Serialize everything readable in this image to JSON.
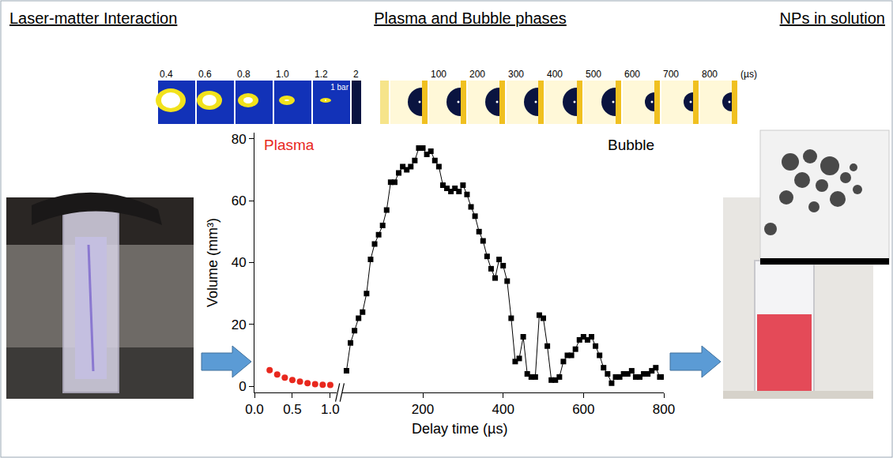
{
  "chart_data": {
    "type": "scatter",
    "x_label": "Delay time (µs)",
    "y_label": "Volume (mm³)",
    "xlim": [
      0,
      1.08
    ],
    "xticks": [
      {
        "value": 0,
        "label": "0.0"
      },
      0.5,
      {
        "value": 1,
        "label": "1.0"
      }
    ],
    "x2lim": [
      0,
      800
    ],
    "x2ticks": [
      200,
      400,
      600,
      800
    ],
    "ylim": [
      -2,
      82
    ],
    "yticks": [
      0,
      20,
      40,
      60,
      80
    ],
    "grid": false,
    "series": [
      {
        "name": "Plasma",
        "color": "#e8281e",
        "marker": "circle",
        "line_style": "none",
        "x": [
          0.2,
          0.3,
          0.4,
          0.5,
          0.6,
          0.7,
          0.8,
          0.9,
          1.0
        ],
        "values": [
          5.2,
          3.8,
          2.8,
          2.0,
          1.5,
          1.0,
          0.7,
          0.5,
          0.4
        ]
      },
      {
        "name": "Bubble",
        "color": "#000000",
        "marker": "square",
        "line_style": "solid",
        "axis": "x2",
        "x": [
          10,
          20,
          30,
          40,
          50,
          60,
          70,
          80,
          90,
          100,
          110,
          120,
          130,
          140,
          150,
          160,
          170,
          180,
          190,
          200,
          210,
          220,
          230,
          240,
          250,
          260,
          270,
          280,
          290,
          300,
          310,
          320,
          330,
          340,
          350,
          360,
          370,
          380,
          390,
          400,
          410,
          420,
          430,
          440,
          450,
          460,
          470,
          480,
          490,
          500,
          510,
          520,
          530,
          540,
          550,
          560,
          570,
          580,
          590,
          600,
          610,
          620,
          630,
          640,
          650,
          660,
          670,
          680,
          690,
          700,
          710,
          720,
          730,
          740,
          750,
          760,
          770,
          780,
          790,
          800
        ],
        "values": [
          5,
          14,
          18,
          22,
          24,
          30,
          41,
          46,
          49,
          52,
          57,
          66,
          66,
          69,
          71,
          70,
          71,
          73,
          77,
          77,
          75,
          76,
          73,
          71,
          65,
          64,
          63,
          64,
          63,
          65,
          62,
          58,
          55,
          50,
          47,
          42,
          38,
          35,
          41,
          39,
          34,
          22,
          8,
          9,
          16,
          4,
          3,
          3,
          23,
          22,
          13,
          2,
          2,
          3,
          8,
          10,
          10,
          12,
          15,
          16,
          15,
          16,
          13,
          10,
          6,
          4,
          1,
          3,
          3,
          4,
          4,
          5,
          3,
          3,
          4,
          4,
          5,
          6,
          3,
          3
        ]
      }
    ]
  },
  "figure": {
    "headings": [
      "Laser-matter Interaction",
      "Plasma and Bubble phases",
      "NPs in solution"
    ],
    "frames": {
      "labels": [
        "0.4",
        "0.6",
        "0.8",
        "1.0",
        "1.2",
        "2",
        "100",
        "200",
        "300",
        "400",
        "500",
        "600",
        "700",
        "800"
      ],
      "first_label_extra": null,
      "unit": "(µs)",
      "scale_label": "1 bar"
    }
  }
}
